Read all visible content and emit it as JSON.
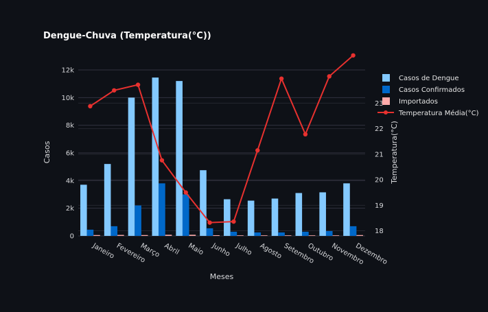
{
  "chart_data": {
    "type": "bar+line",
    "title": "Dengue-Chuva (Temperatura(°C))",
    "xlabel": "Meses",
    "ylabel": "Casos",
    "y2label": "Temperatura(°C)",
    "categories": [
      "Janeiro",
      "Fevereiro",
      "Março",
      "Abril",
      "Maio",
      "Junho",
      "Julho",
      "Agosto",
      "Setembro",
      "Outubro",
      "Novembro",
      "Dezembro"
    ],
    "ylim": [
      0,
      12000
    ],
    "yticks": [
      0,
      2000,
      4000,
      6000,
      8000,
      10000,
      12000
    ],
    "ytick_labels": [
      "0",
      "2k",
      "4k",
      "6k",
      "8k",
      "10k",
      "12k"
    ],
    "y2lim": [
      17.8,
      24.3
    ],
    "y2ticks": [
      18,
      19,
      20,
      21,
      22,
      23
    ],
    "y2tick_labels": [
      "18",
      "19",
      "20",
      "21",
      "22",
      "23"
    ],
    "grid": true,
    "legend_position": "right",
    "series": [
      {
        "name": "Casos de Dengue",
        "kind": "bar",
        "axis": "y",
        "color": "#83c9ff",
        "values": [
          3700,
          5200,
          10000,
          11450,
          11200,
          4750,
          2650,
          2550,
          2700,
          3100,
          3150,
          3800
        ]
      },
      {
        "name": "Casos Confirmados",
        "kind": "bar",
        "axis": "y",
        "color": "#0068c9",
        "values": [
          450,
          700,
          2200,
          3800,
          3000,
          550,
          300,
          250,
          250,
          300,
          350,
          700
        ]
      },
      {
        "name": "Importados",
        "kind": "bar",
        "axis": "y",
        "color": "#ffabab",
        "values": [
          60,
          70,
          60,
          80,
          80,
          50,
          40,
          40,
          40,
          40,
          40,
          60
        ]
      },
      {
        "name": "Temperatura Média(°C)",
        "kind": "line",
        "axis": "y2",
        "color": "#e8312f",
        "values": [
          22.88,
          23.5,
          23.72,
          20.76,
          19.5,
          18.32,
          18.36,
          21.15,
          23.96,
          21.78,
          24.05,
          24.87
        ]
      }
    ]
  }
}
